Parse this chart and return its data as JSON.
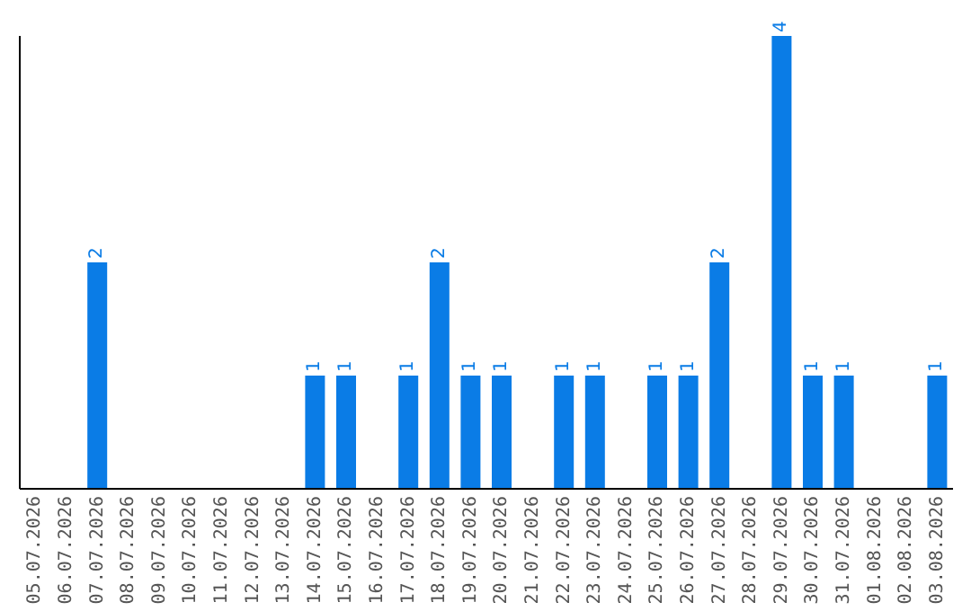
{
  "chart_data": {
    "type": "bar",
    "categories": [
      "05.07.2026",
      "06.07.2026",
      "07.07.2026",
      "08.07.2026",
      "09.07.2026",
      "10.07.2026",
      "11.07.2026",
      "12.07.2026",
      "13.07.2026",
      "14.07.2026",
      "15.07.2026",
      "16.07.2026",
      "17.07.2026",
      "18.07.2026",
      "19.07.2026",
      "20.07.2026",
      "21.07.2026",
      "22.07.2026",
      "23.07.2026",
      "24.07.2026",
      "25.07.2026",
      "26.07.2026",
      "27.07.2026",
      "28.07.2026",
      "29.07.2026",
      "30.07.2026",
      "31.07.2026",
      "01.08.2026",
      "02.08.2026",
      "03.08.2026"
    ],
    "values": [
      0,
      0,
      2,
      0,
      0,
      0,
      0,
      0,
      0,
      1,
      1,
      0,
      1,
      2,
      1,
      1,
      0,
      1,
      1,
      0,
      1,
      1,
      2,
      0,
      4,
      1,
      1,
      0,
      0,
      1
    ],
    "value_labels": [
      null,
      null,
      "2",
      null,
      null,
      null,
      null,
      null,
      null,
      "1",
      "1",
      null,
      "1",
      "2",
      "1",
      "1",
      null,
      "1",
      "1",
      null,
      "1",
      "1",
      "2",
      null,
      "4",
      "1",
      "1",
      null,
      null,
      "1"
    ],
    "color": "#0a7ce6",
    "grid": false,
    "legend": false
  }
}
